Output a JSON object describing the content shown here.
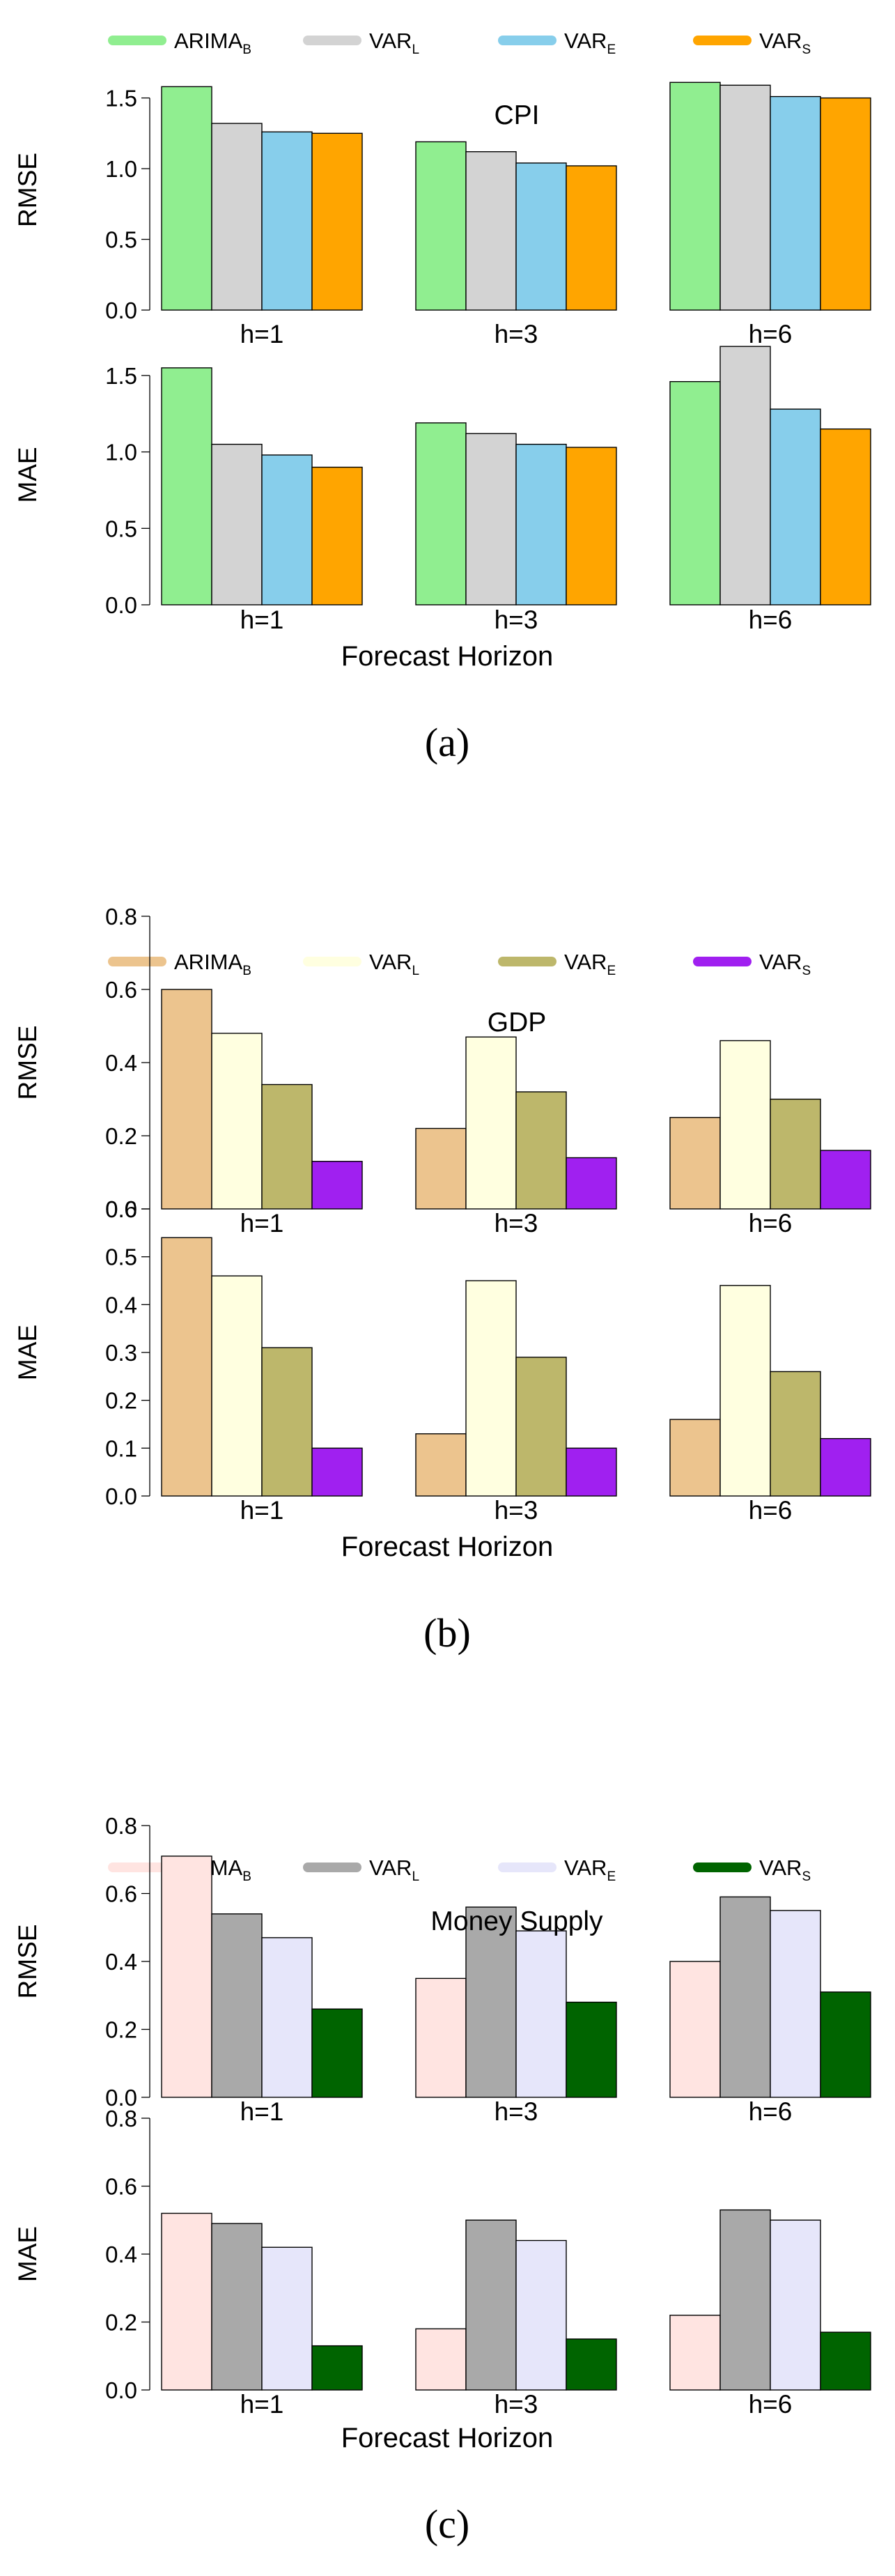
{
  "chart_data": [
    {
      "type": "bar",
      "id": "a",
      "caption": "(a)",
      "title": "CPI",
      "xlabel": "Forecast Horizon",
      "categories": [
        "h=1",
        "h=3",
        "h=6"
      ],
      "legend": [
        {
          "name": "ARIMA",
          "sub": "B"
        },
        {
          "name": "VAR",
          "sub": "L"
        },
        {
          "name": "VAR",
          "sub": "E"
        },
        {
          "name": "VAR",
          "sub": "S"
        }
      ],
      "colors": [
        "#90EE90",
        "#D3D3D3",
        "#87CEEB",
        "#FFA500"
      ],
      "panels": [
        {
          "ylabel": "RMSE",
          "ylim": [
            0,
            1.7
          ],
          "yticks": [
            0.0,
            0.5,
            1.0,
            1.5
          ],
          "ytick_labels": [
            "0.0",
            "0.5",
            "1.0",
            "1.5"
          ],
          "series": [
            {
              "name": "ARIMA_B",
              "values": [
                1.58,
                1.19,
                1.61
              ]
            },
            {
              "name": "VAR_L",
              "values": [
                1.32,
                1.12,
                1.59
              ]
            },
            {
              "name": "VAR_E",
              "values": [
                1.26,
                1.04,
                1.51
              ]
            },
            {
              "name": "VAR_S",
              "values": [
                1.25,
                1.02,
                1.5
              ]
            }
          ]
        },
        {
          "ylabel": "MAE",
          "ylim": [
            0,
            1.7
          ],
          "yticks": [
            0.0,
            0.5,
            1.0,
            1.5
          ],
          "ytick_labels": [
            "0.0",
            "0.5",
            "1.0",
            "1.5"
          ],
          "series": [
            {
              "name": "ARIMA_B",
              "values": [
                1.55,
                1.19,
                1.46
              ]
            },
            {
              "name": "VAR_L",
              "values": [
                1.05,
                1.12,
                1.69
              ]
            },
            {
              "name": "VAR_E",
              "values": [
                0.98,
                1.05,
                1.28
              ]
            },
            {
              "name": "VAR_S",
              "values": [
                0.9,
                1.03,
                1.15
              ]
            }
          ]
        }
      ]
    },
    {
      "type": "bar",
      "id": "b",
      "caption": "(b)",
      "title": "GDP",
      "xlabel": "Forecast Horizon",
      "categories": [
        "h=1",
        "h=3",
        "h=6"
      ],
      "legend": [
        {
          "name": "ARIMA",
          "sub": "B"
        },
        {
          "name": "VAR",
          "sub": "L"
        },
        {
          "name": "VAR",
          "sub": "E"
        },
        {
          "name": "VAR",
          "sub": "S"
        }
      ],
      "colors": [
        "#ECC48E",
        "#FFFFE0",
        "#BDB76B",
        "#A020F0"
      ],
      "panels": [
        {
          "ylabel": "RMSE",
          "ylim": [
            0,
            0.8
          ],
          "yticks": [
            0.0,
            0.2,
            0.4,
            0.6,
            0.8
          ],
          "ytick_labels": [
            "0.0",
            "0.2",
            "0.4",
            "0.6",
            "0.8"
          ],
          "series": [
            {
              "name": "ARIMA_B",
              "values": [
                0.6,
                0.22,
                0.25
              ]
            },
            {
              "name": "VAR_L",
              "values": [
                0.48,
                0.47,
                0.46
              ]
            },
            {
              "name": "VAR_E",
              "values": [
                0.34,
                0.32,
                0.3
              ]
            },
            {
              "name": "VAR_S",
              "values": [
                0.13,
                0.14,
                0.16
              ]
            }
          ]
        },
        {
          "ylabel": "MAE",
          "ylim": [
            0,
            0.6
          ],
          "yticks": [
            0.0,
            0.1,
            0.2,
            0.3,
            0.4,
            0.5,
            0.6
          ],
          "ytick_labels": [
            "0.0",
            "0.1",
            "0.2",
            "0.3",
            "0.4",
            "0.5",
            "0.6"
          ],
          "series": [
            {
              "name": "ARIMA_B",
              "values": [
                0.54,
                0.13,
                0.16
              ]
            },
            {
              "name": "VAR_L",
              "values": [
                0.46,
                0.45,
                0.44
              ]
            },
            {
              "name": "VAR_E",
              "values": [
                0.31,
                0.29,
                0.26
              ]
            },
            {
              "name": "VAR_S",
              "values": [
                0.1,
                0.1,
                0.12
              ]
            }
          ]
        }
      ]
    },
    {
      "type": "bar",
      "id": "c",
      "caption": "(c)",
      "title": "Money Supply",
      "xlabel": "Forecast Horizon",
      "categories": [
        "h=1",
        "h=3",
        "h=6"
      ],
      "legend": [
        {
          "name": "ARIMA",
          "sub": "B"
        },
        {
          "name": "VAR",
          "sub": "L"
        },
        {
          "name": "VAR",
          "sub": "E"
        },
        {
          "name": "VAR",
          "sub": "S"
        }
      ],
      "colors": [
        "#FFE4E1",
        "#A9A9A9",
        "#E6E6FA",
        "#006400"
      ],
      "panels": [
        {
          "ylabel": "RMSE",
          "ylim": [
            0,
            0.8
          ],
          "yticks": [
            0.0,
            0.2,
            0.4,
            0.6,
            0.8
          ],
          "ytick_labels": [
            "0.0",
            "0.2",
            "0.4",
            "0.6",
            "0.8"
          ],
          "series": [
            {
              "name": "ARIMA_B",
              "values": [
                0.71,
                0.35,
                0.4
              ]
            },
            {
              "name": "VAR_L",
              "values": [
                0.54,
                0.56,
                0.59
              ]
            },
            {
              "name": "VAR_E",
              "values": [
                0.47,
                0.49,
                0.55
              ]
            },
            {
              "name": "VAR_S",
              "values": [
                0.26,
                0.28,
                0.31
              ]
            }
          ]
        },
        {
          "ylabel": "MAE",
          "ylim": [
            0,
            0.8
          ],
          "yticks": [
            0.0,
            0.2,
            0.4,
            0.6,
            0.8
          ],
          "ytick_labels": [
            "0.0",
            "0.2",
            "0.4",
            "0.6",
            "0.8"
          ],
          "series": [
            {
              "name": "ARIMA_B",
              "values": [
                0.52,
                0.18,
                0.22
              ]
            },
            {
              "name": "VAR_L",
              "values": [
                0.49,
                0.5,
                0.53
              ]
            },
            {
              "name": "VAR_E",
              "values": [
                0.42,
                0.44,
                0.5
              ]
            },
            {
              "name": "VAR_S",
              "values": [
                0.13,
                0.15,
                0.17
              ]
            }
          ]
        }
      ]
    }
  ]
}
